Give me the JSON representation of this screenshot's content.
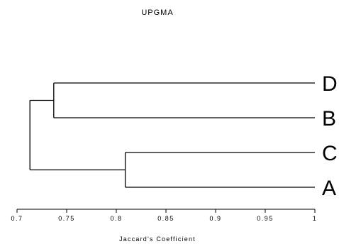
{
  "chart_data": {
    "type": "dendrogram",
    "title": "UPGMA",
    "xlabel": "Jaccard's Coefficient",
    "xlim": [
      0.7,
      1.0
    ],
    "xticks": [
      {
        "value": 0.7,
        "label": "0.7"
      },
      {
        "value": 0.75,
        "label": "0.75"
      },
      {
        "value": 0.8,
        "label": "0.8"
      },
      {
        "value": 0.85,
        "label": "0.85"
      },
      {
        "value": 0.9,
        "label": "0.9"
      },
      {
        "value": 0.95,
        "label": "0.95"
      },
      {
        "value": 1.0,
        "label": "1"
      }
    ],
    "leaves": [
      "D",
      "B",
      "C",
      "A"
    ],
    "merges": [
      {
        "members": [
          "D",
          "B"
        ],
        "similarity": 0.737
      },
      {
        "members": [
          "C",
          "A"
        ],
        "similarity": 0.809
      },
      {
        "members": [
          "D",
          "B",
          "C",
          "A"
        ],
        "similarity": 0.713
      }
    ]
  }
}
